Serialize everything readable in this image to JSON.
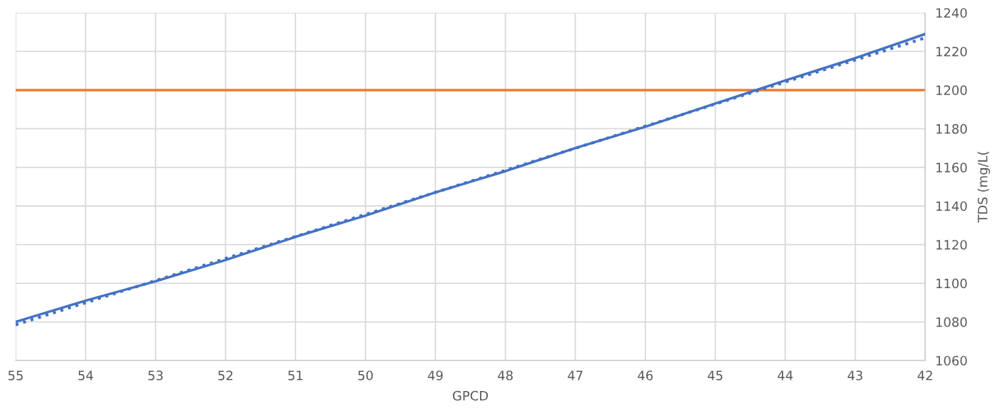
{
  "chart_data": {
    "type": "line",
    "xlabel": "GPCD",
    "ylabel": "TDS (mg/L(",
    "x": [
      55,
      54,
      53,
      52,
      51,
      50,
      49,
      48,
      47,
      46,
      45,
      44,
      43,
      42
    ],
    "series": [
      {
        "color": "#4472c4",
        "values": [
          1080,
          1091,
          1101,
          1112,
          1124,
          1135,
          1147,
          1158,
          1170,
          1181,
          1193,
          1205,
          1216.5,
          1229
        ]
      },
      {
        "color": "#4472c4",
        "line_style": "dotted",
        "x": [
          55,
          42
        ],
        "values": [
          1078.5,
          1227
        ]
      }
    ],
    "ref_lines": [
      {
        "axis": "y",
        "value": 1200,
        "color": "#ed7d31"
      }
    ],
    "xlim": [
      55,
      42
    ],
    "xticks": [
      55,
      54,
      53,
      52,
      51,
      50,
      49,
      48,
      47,
      46,
      45,
      44,
      43,
      42
    ],
    "ylim": [
      1060,
      1240
    ],
    "yticks": [
      1060,
      1080,
      1100,
      1120,
      1140,
      1160,
      1180,
      1200,
      1220,
      1240
    ],
    "grid": true,
    "legend": false,
    "marker": "none",
    "line_style": "solid"
  }
}
